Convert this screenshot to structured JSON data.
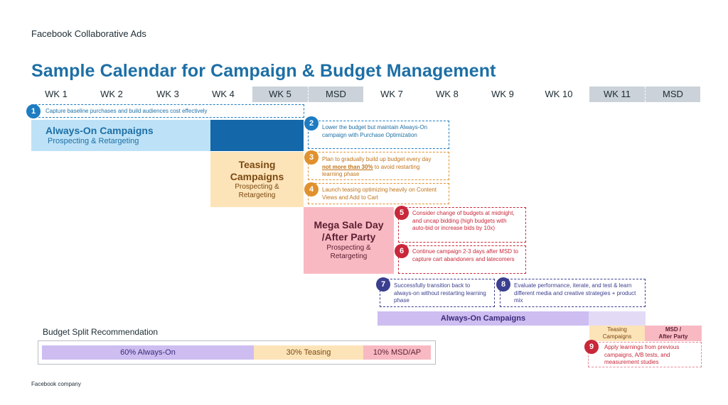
{
  "header": {
    "brand": "Facebook Collaborative Ads",
    "title": "Sample Calendar for Campaign & Budget Management"
  },
  "weeks": [
    "WK 1",
    "WK 2",
    "WK 3",
    "WK 4",
    "WK 5",
    "MSD",
    "WK 7",
    "WK 8",
    "WK 9",
    "WK 10",
    "WK 11",
    "MSD"
  ],
  "steps": [
    {
      "num": "1",
      "text": "Capture baseline purchases and build audiences cost effectively"
    },
    {
      "num": "2",
      "text": "Lower the budget but maintain Always-On campaign with Purchase Optimization"
    },
    {
      "num": "3",
      "text_before": "Plan to gradually build up budget every day ",
      "text_emph": "not more than 30%",
      "text_after": " to avoid restarting learning phase"
    },
    {
      "num": "4",
      "text": "Launch teasing optimizing heavily on Content Views and Add to Cart"
    },
    {
      "num": "5",
      "text": "Consider change of budgets at midnight, and uncap bidding (high budgets with auto-bid or increase bids by 10x)"
    },
    {
      "num": "6",
      "text": "Continue campaign 2-3 days after MSD to capture cart abandoners and latecomers"
    },
    {
      "num": "7",
      "text": "Successfully transition back to always-on without restarting learning phase"
    },
    {
      "num": "8",
      "text": "Evaluate performance, iterate, and test & learn different media and creative strategies + product mix"
    },
    {
      "num": "9",
      "text": "Apply learnings from previous campaigns, A/B tests, and measurement studies"
    }
  ],
  "blocks": {
    "always_on": {
      "title": "Always-On Campaigns",
      "sub": "Prospecting & Retargeting"
    },
    "teasing": {
      "title_l1": "Teasing",
      "title_l2": "Campaigns",
      "sub_l1": "Prospecting &",
      "sub_l2": "Retargeting"
    },
    "mega": {
      "title_l1": "Mega Sale Day",
      "title_l2": "/After Party",
      "sub_l1": "Prospecting &",
      "sub_l2": "Retargeting"
    },
    "always_on_2": {
      "title": "Always-On Campaigns"
    },
    "teasing_small": {
      "l1": "Teasing",
      "l2": "Campaigns"
    },
    "msd_small": {
      "l1": "MSD /",
      "l2": "After Party"
    }
  },
  "budget": {
    "heading": "Budget Split Recommendation",
    "always_on": "60% Always-On",
    "teasing": "30% Teasing",
    "msd": "10% MSD/AP"
  },
  "footer": "Facebook company",
  "colors": {
    "title_blue": "#1d6fa5",
    "always_on_light": "#bde2f7",
    "always_on_dark": "#1467a8",
    "teasing": "#fde3b8",
    "teasing_text": "#7a4a12",
    "mega": "#f8b9c3",
    "mega_text": "#5a1e30",
    "purple": "#cdbdf0",
    "purple_text": "#3c2a7a",
    "orange": "#e0912e",
    "red": "#c8283a",
    "navy": "#3b3f8f",
    "blue_num": "#1d7cc2"
  }
}
